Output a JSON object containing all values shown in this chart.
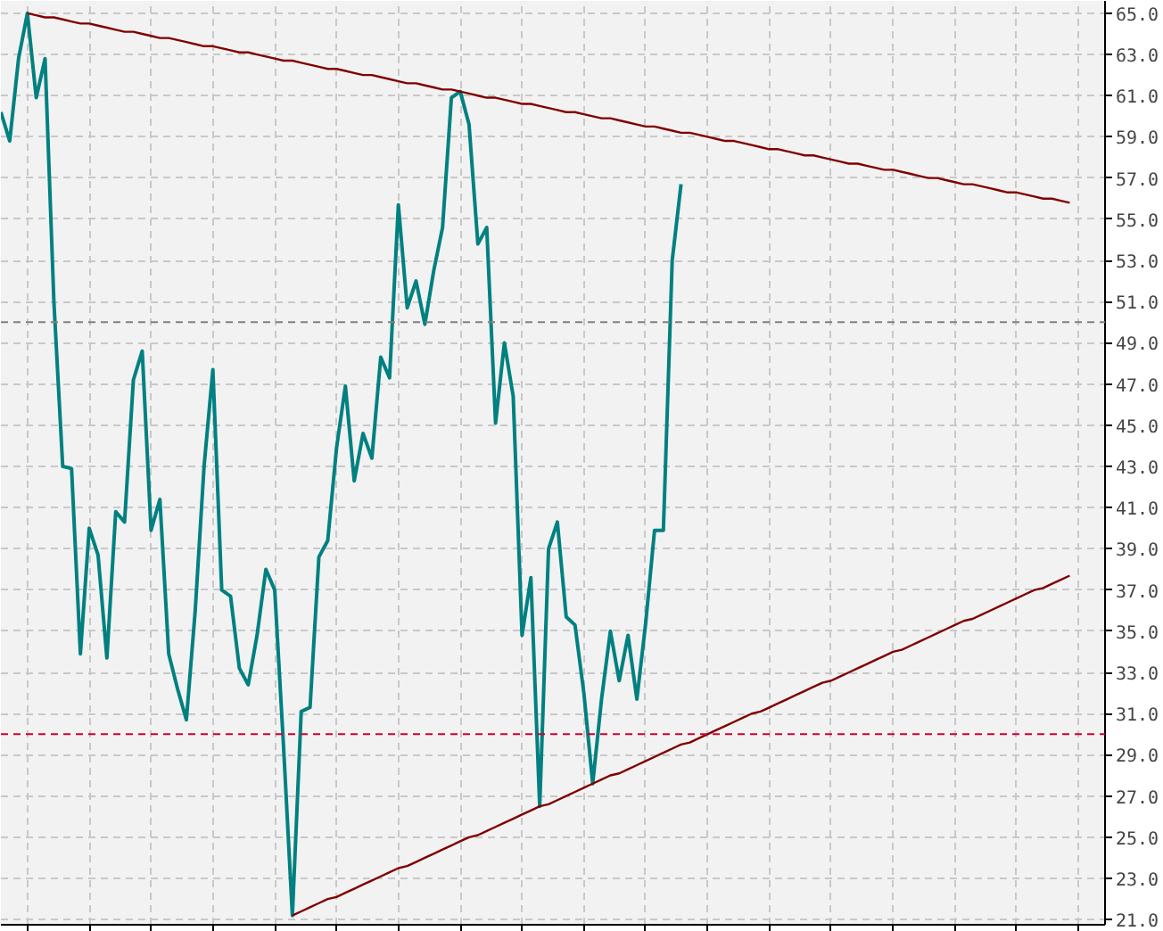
{
  "chart_data": {
    "type": "line",
    "categories": [
      null,
      null,
      null,
      null,
      null,
      null,
      null,
      null,
      null,
      null,
      null,
      null,
      null,
      null,
      null,
      null,
      null,
      null,
      null,
      null,
      null,
      null,
      null,
      null,
      null,
      null,
      null,
      null,
      null,
      null,
      null,
      null,
      null,
      null,
      null,
      null,
      null,
      null,
      null,
      null,
      null,
      null,
      null,
      null,
      null,
      null,
      null,
      null,
      null,
      null,
      null,
      null,
      null,
      null,
      null,
      null,
      null,
      null,
      null,
      null,
      null,
      null,
      null,
      null,
      null,
      null,
      null,
      null,
      null,
      null,
      null,
      null,
      null,
      null,
      null,
      null,
      null,
      null,
      null,
      null,
      null,
      null,
      null,
      null,
      null,
      null,
      null,
      null,
      null,
      null,
      null,
      null,
      null,
      null,
      null,
      null,
      null,
      null,
      null,
      null,
      null,
      null,
      null,
      null,
      null,
      null,
      null,
      null,
      null,
      null,
      null,
      null,
      null,
      null,
      null,
      null,
      null,
      null,
      null,
      null,
      null,
      null,
      null,
      null,
      null
    ],
    "series": [
      {
        "color": "#008080",
        "values": [
          60.2,
          58.8,
          62.8,
          65.0,
          60.9,
          62.8,
          51.0,
          43.0,
          42.9,
          33.9,
          40.0,
          38.7,
          33.7,
          40.8,
          40.3,
          47.2,
          48.6,
          39.9,
          41.4,
          33.9,
          32.2,
          30.7,
          36.0,
          43.0,
          47.7,
          37.0,
          36.7,
          33.2,
          32.4,
          34.8,
          38.0,
          37.0,
          29.4,
          21.2,
          31.1,
          31.3,
          38.6,
          39.4,
          43.9,
          46.9,
          42.3,
          44.6,
          43.4,
          48.3,
          47.3,
          55.7,
          50.7,
          52.0,
          49.9,
          52.5,
          54.6,
          60.9,
          61.2,
          59.6,
          53.8,
          54.6,
          45.1,
          49.0,
          46.4,
          34.8,
          37.6,
          26.5,
          39.0,
          40.3,
          35.7,
          35.3,
          32.0,
          27.6,
          31.7,
          35.0,
          32.6,
          34.8,
          31.7,
          35.4,
          39.9,
          39.9,
          53.0,
          56.7,
          null,
          null,
          null,
          null,
          null,
          null,
          null,
          null,
          null,
          null,
          null,
          null,
          null,
          null,
          null,
          null,
          null,
          null,
          null,
          null,
          null,
          null,
          null,
          null,
          null,
          null,
          null,
          null,
          null,
          null,
          null,
          null,
          null,
          null,
          null,
          null,
          null,
          null,
          null,
          null,
          null,
          null,
          null,
          null,
          null,
          null,
          null
        ]
      },
      {
        "type": "line",
        "color": "#800000",
        "values": [
          null,
          null,
          null,
          65.0,
          64.9,
          64.8,
          64.8,
          64.7,
          64.6,
          64.5,
          64.5,
          64.4,
          64.3,
          64.2,
          64.1,
          64.1,
          64.0,
          63.9,
          63.8,
          63.8,
          63.7,
          63.6,
          63.5,
          63.4,
          63.4,
          63.3,
          63.2,
          63.1,
          63.1,
          63.0,
          62.9,
          62.8,
          62.7,
          62.7,
          62.6,
          62.5,
          62.4,
          62.3,
          62.3,
          62.2,
          62.1,
          62.0,
          62.0,
          61.9,
          61.8,
          61.7,
          61.6,
          61.6,
          61.5,
          61.4,
          61.3,
          61.3,
          61.2,
          61.1,
          61.0,
          60.9,
          60.9,
          60.8,
          60.7,
          60.6,
          60.6,
          60.5,
          60.4,
          60.3,
          60.2,
          60.2,
          60.1,
          60.0,
          59.9,
          59.9,
          59.8,
          59.7,
          59.6,
          59.5,
          59.5,
          59.4,
          59.3,
          59.2,
          59.2,
          59.1,
          59.0,
          58.9,
          58.8,
          58.8,
          58.7,
          58.6,
          58.5,
          58.4,
          58.4,
          58.3,
          58.2,
          58.1,
          58.1,
          58.0,
          57.9,
          57.8,
          57.7,
          57.7,
          57.6,
          57.5,
          57.4,
          57.4,
          57.3,
          57.2,
          57.1,
          57.0,
          57.0,
          56.9,
          56.8,
          56.7,
          56.7,
          56.6,
          56.5,
          56.4,
          56.3,
          56.3,
          56.2,
          56.1,
          56.0,
          56.0,
          55.9,
          55.8,
          null,
          null,
          null
        ]
      },
      {
        "type": "line",
        "color": "#800000",
        "values": [
          null,
          null,
          null,
          null,
          null,
          null,
          null,
          null,
          null,
          null,
          null,
          null,
          null,
          null,
          null,
          null,
          null,
          null,
          null,
          null,
          null,
          null,
          null,
          null,
          null,
          null,
          null,
          null,
          null,
          null,
          null,
          null,
          null,
          21.2,
          21.4,
          21.6,
          21.8,
          22.0,
          22.1,
          22.3,
          22.5,
          22.7,
          22.9,
          23.1,
          23.3,
          23.5,
          23.6,
          23.8,
          24.0,
          24.2,
          24.4,
          24.6,
          24.8,
          25.0,
          25.1,
          25.3,
          25.5,
          25.7,
          25.9,
          26.1,
          26.3,
          26.5,
          26.6,
          26.8,
          27.0,
          27.2,
          27.4,
          27.6,
          27.8,
          28.0,
          28.1,
          28.3,
          28.5,
          28.7,
          28.9,
          29.1,
          29.3,
          29.5,
          29.6,
          29.8,
          30.0,
          30.2,
          30.4,
          30.6,
          30.8,
          31.0,
          31.1,
          31.3,
          31.5,
          31.7,
          31.9,
          32.1,
          32.3,
          32.5,
          32.6,
          32.8,
          33.0,
          33.2,
          33.4,
          33.6,
          33.8,
          34.0,
          34.1,
          34.3,
          34.5,
          34.7,
          34.9,
          35.1,
          35.3,
          35.5,
          35.6,
          35.8,
          36.0,
          36.2,
          36.4,
          36.6,
          36.8,
          37.0,
          37.1,
          37.3,
          37.5,
          37.7,
          null,
          null,
          null
        ]
      }
    ],
    "ylim": [
      20.75,
      65.6
    ],
    "yticks": [
      {
        "value": 21,
        "label": "21.0"
      },
      {
        "value": 23,
        "label": "23.0"
      },
      {
        "value": 25,
        "label": "25.0"
      },
      {
        "value": 27,
        "label": "27.0"
      },
      {
        "value": 29,
        "label": "29.0"
      },
      {
        "value": 31,
        "label": "31.0"
      },
      {
        "value": 33,
        "label": "33.0"
      },
      {
        "value": 35,
        "label": "35.0"
      },
      {
        "value": 37,
        "label": "37.0"
      },
      {
        "value": 39,
        "label": "39.0"
      },
      {
        "value": 41,
        "label": "41.0"
      },
      {
        "value": 43,
        "label": "43.0"
      },
      {
        "value": 45,
        "label": "45.0"
      },
      {
        "value": 47,
        "label": "47.0"
      },
      {
        "value": 49,
        "label": "49.0"
      },
      {
        "value": 51,
        "label": "51.0"
      },
      {
        "value": 53,
        "label": "53.0"
      },
      {
        "value": 55,
        "label": "55.0"
      },
      {
        "value": 57,
        "label": "57.0"
      },
      {
        "value": 59,
        "label": "59.0"
      },
      {
        "value": 61,
        "label": "61.0"
      },
      {
        "value": 63,
        "label": "63.0"
      },
      {
        "value": 65,
        "label": "65.0"
      }
    ],
    "ref_lines": [
      {
        "axis": "y",
        "value": 50,
        "color": "#808080",
        "line_style": "dashed"
      },
      {
        "axis": "y",
        "value": 30,
        "color": "#cc0033",
        "line_style": "dashed"
      }
    ],
    "grid": true,
    "tick_labels": "y",
    "line_style": "solid"
  }
}
